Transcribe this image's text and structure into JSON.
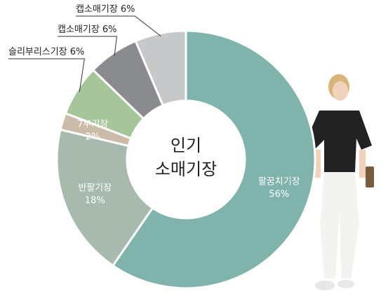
{
  "chart_data": {
    "type": "donut",
    "center_label": [
      "인기",
      "소매기장"
    ],
    "categories": [
      "팔꿈치기장",
      "반팔기장",
      "7부기장",
      "슬리부리스기장",
      "캡소매기장",
      "캡소매기장"
    ],
    "values": [
      56,
      18,
      2,
      6,
      6,
      6
    ],
    "value_labels": [
      "56%",
      "18%",
      "2%",
      "6%",
      "6%",
      "6%"
    ],
    "colors": [
      "#7fb3ab",
      "#a8b9ad",
      "#cbbba9",
      "#a7c59b",
      "#898b8f",
      "#c6c8ca"
    ]
  }
}
